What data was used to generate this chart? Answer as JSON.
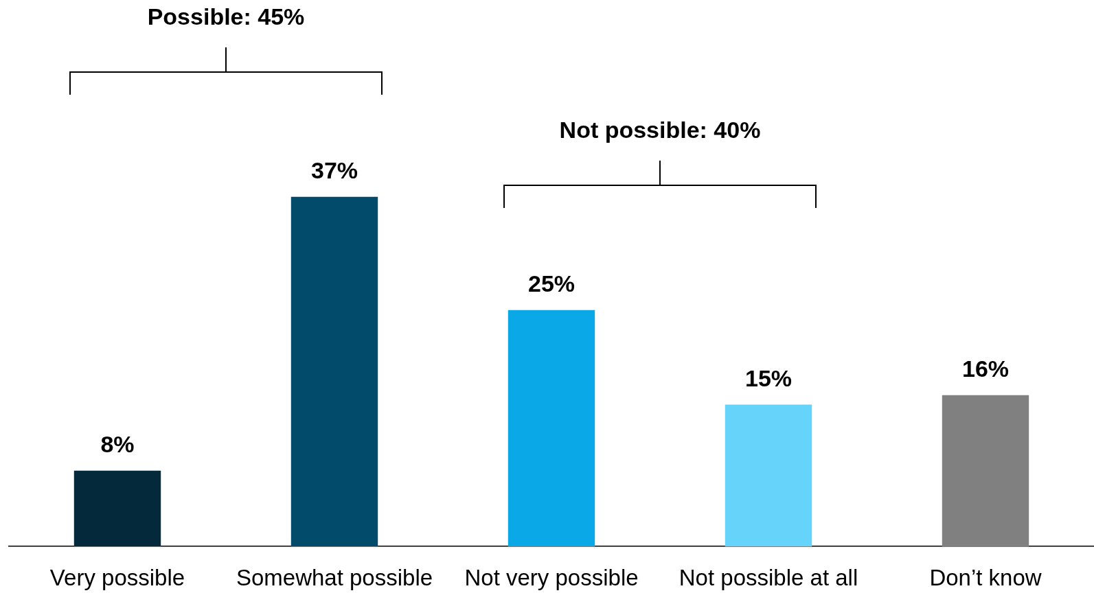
{
  "chart_data": {
    "type": "bar",
    "categories": [
      "Very possible",
      "Somewhat possible",
      "Not very possible",
      "Not possible at all",
      "Don’t know"
    ],
    "values": [
      8,
      37,
      25,
      15,
      16
    ],
    "colors": [
      "#03293a",
      "#024b6a",
      "#0aa8e6",
      "#66d4fa",
      "#808080"
    ],
    "value_labels": [
      "8%",
      "37%",
      "25%",
      "15%",
      "16%"
    ],
    "annotations": [
      "Possible: 45%",
      "Not possible: 40%"
    ]
  }
}
